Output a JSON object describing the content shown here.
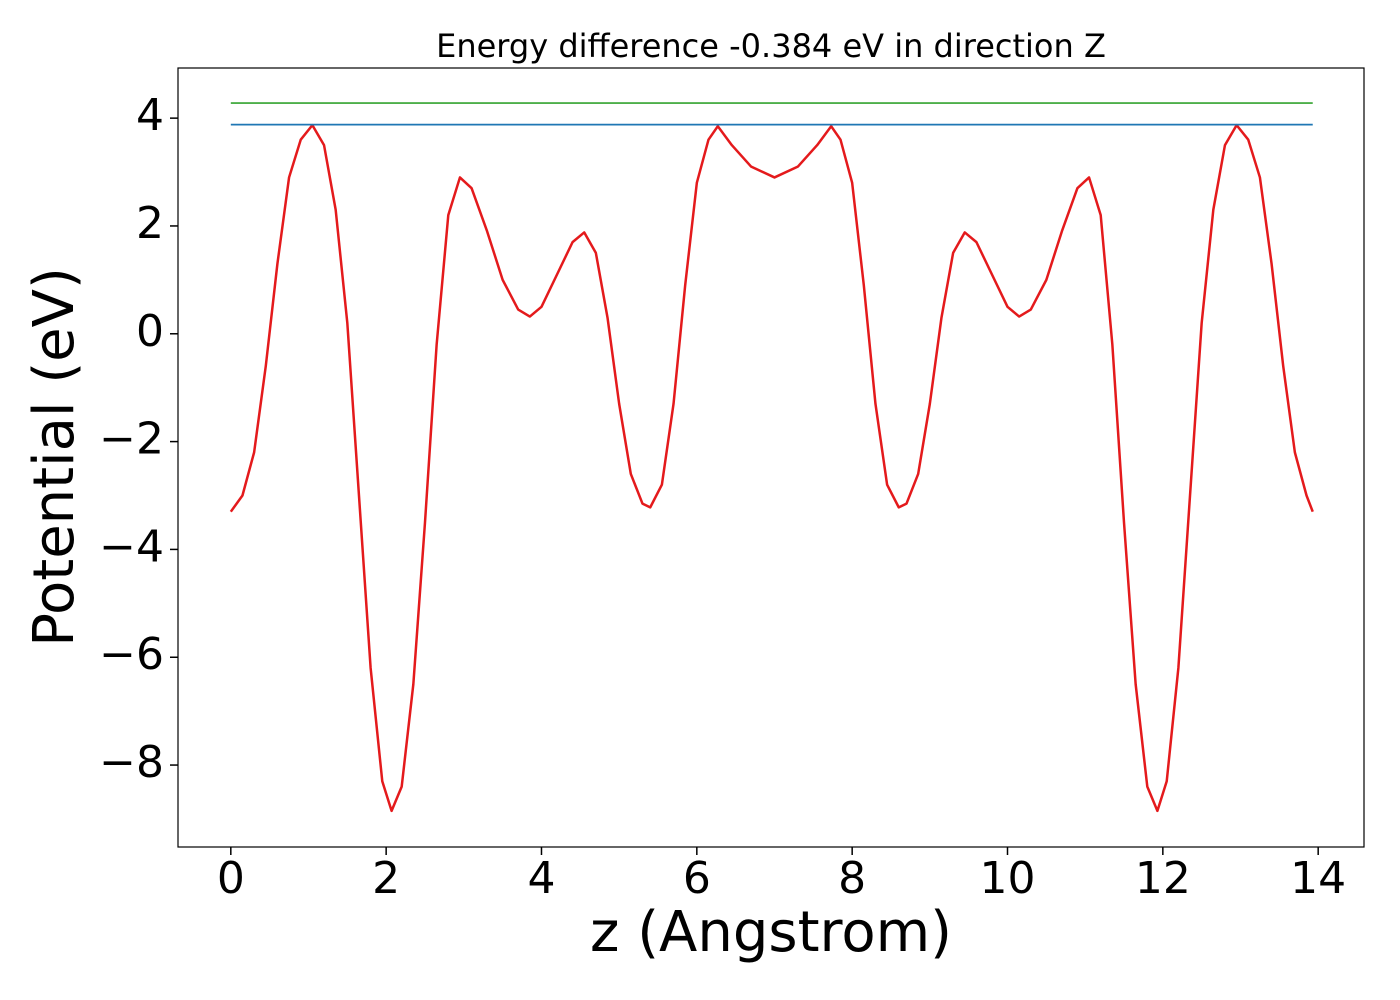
{
  "chart_data": {
    "type": "line",
    "title": "Energy difference -0.384 eV in direction Z",
    "x_label": "z (Angstrom)",
    "y_label": "Potential (eV)",
    "xlim": [
      -0.68,
      14.59
    ],
    "ylim": [
      -9.52,
      4.93
    ],
    "xticks": [
      0,
      2,
      4,
      6,
      8,
      10,
      12,
      14
    ],
    "yticks": [
      {
        "value": -8,
        "label": "−8"
      },
      {
        "value": -6,
        "label": "−6"
      },
      {
        "value": -4,
        "label": "−4"
      },
      {
        "value": -2,
        "label": "−2"
      },
      0,
      2,
      4
    ],
    "grid": false,
    "series": [
      {
        "color": "#e41a1c",
        "x": [
          0,
          0.15,
          0.3,
          0.45,
          0.6,
          0.75,
          0.9,
          1.05,
          1.2,
          1.35,
          1.5,
          1.65,
          1.8,
          1.95,
          2.07,
          2.2,
          2.35,
          2.5,
          2.65,
          2.8,
          2.95,
          3.1,
          3.3,
          3.5,
          3.7,
          3.85,
          4.0,
          4.2,
          4.4,
          4.55,
          4.7,
          4.85,
          5.0,
          5.15,
          5.3,
          5.4,
          5.55,
          5.7,
          5.85,
          6.0,
          6.15,
          6.27,
          6.45,
          6.7,
          7.0,
          7.3,
          7.55,
          7.73,
          7.85,
          8.0,
          8.15,
          8.3,
          8.45,
          8.6,
          8.7,
          8.85,
          9.0,
          9.15,
          9.3,
          9.45,
          9.6,
          9.8,
          10.0,
          10.15,
          10.3,
          10.5,
          10.7,
          10.9,
          11.05,
          11.2,
          11.35,
          11.5,
          11.65,
          11.8,
          11.93,
          12.05,
          12.2,
          12.35,
          12.5,
          12.65,
          12.8,
          12.95,
          13.1,
          13.25,
          13.4,
          13.55,
          13.7,
          13.85,
          13.93
        ],
        "values": [
          -3.3,
          -3.0,
          -2.2,
          -0.6,
          1.3,
          2.9,
          3.6,
          3.87,
          3.5,
          2.3,
          0.2,
          -3.0,
          -6.2,
          -8.3,
          -8.85,
          -8.4,
          -6.5,
          -3.5,
          -0.2,
          2.2,
          2.9,
          2.7,
          1.9,
          1.0,
          0.45,
          0.32,
          0.5,
          1.1,
          1.7,
          1.88,
          1.5,
          0.3,
          -1.3,
          -2.6,
          -3.15,
          -3.22,
          -2.8,
          -1.3,
          0.9,
          2.8,
          3.6,
          3.85,
          3.5,
          3.1,
          2.9,
          3.1,
          3.5,
          3.85,
          3.6,
          2.8,
          0.9,
          -1.3,
          -2.8,
          -3.22,
          -3.15,
          -2.6,
          -1.3,
          0.3,
          1.5,
          1.88,
          1.7,
          1.1,
          0.5,
          0.32,
          0.45,
          1.0,
          1.9,
          2.7,
          2.9,
          2.2,
          -0.2,
          -3.5,
          -6.5,
          -8.4,
          -8.85,
          -8.3,
          -6.2,
          -3.0,
          0.2,
          2.3,
          3.5,
          3.87,
          3.6,
          2.9,
          1.3,
          -0.6,
          -2.2,
          -3.0,
          -3.3
        ]
      },
      {
        "color": "#1f77b4",
        "x": [
          0,
          13.93
        ],
        "values": [
          3.88,
          3.88
        ]
      },
      {
        "color": "#4daf4a",
        "x": [
          0,
          13.93
        ],
        "values": [
          4.28,
          4.28
        ]
      }
    ]
  }
}
